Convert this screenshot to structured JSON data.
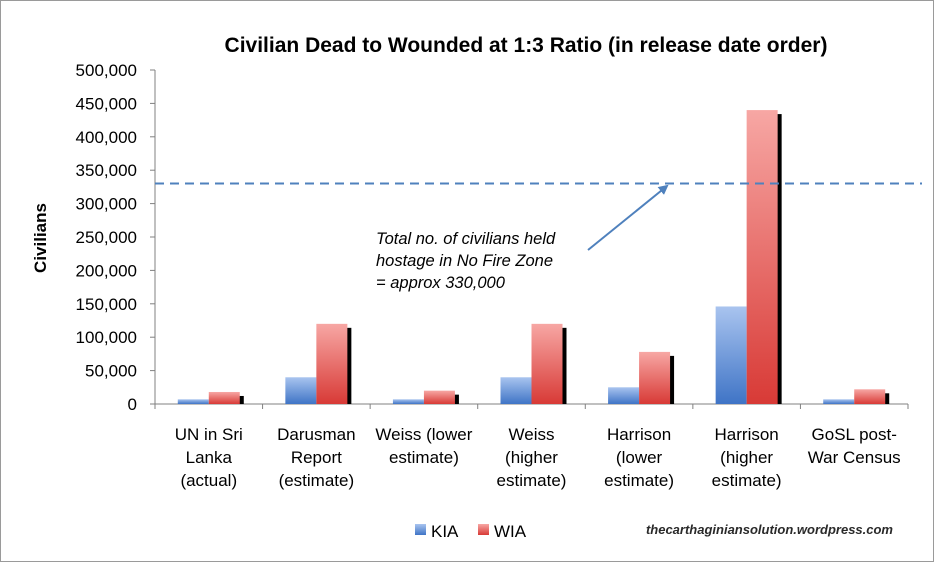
{
  "chart_data": {
    "type": "bar",
    "title": "Civilian Dead to Wounded at 1:3 Ratio (in release date order)",
    "ylabel": "Civilians",
    "xlabel": "",
    "ylim": [
      0,
      500000
    ],
    "yticks": [
      "0",
      "50,000",
      "100,000",
      "150,000",
      "200,000",
      "250,000",
      "300,000",
      "350,000",
      "400,000",
      "450,000",
      "500,000"
    ],
    "categories": [
      [
        "UN in Sri",
        "Lanka",
        "(actual)"
      ],
      [
        "Darusman",
        "Report",
        "(estimate)"
      ],
      [
        "Weiss (lower",
        "estimate)"
      ],
      [
        "Weiss",
        "(higher",
        "estimate)"
      ],
      [
        "Harrison",
        "(lower",
        "estimate)"
      ],
      [
        "Harrison",
        "(higher",
        "estimate)"
      ],
      [
        "GoSL post-",
        "War Census"
      ]
    ],
    "series": [
      {
        "name": "KIA",
        "color": "#4f81bd",
        "values": [
          7000,
          40000,
          7000,
          40000,
          25000,
          146000,
          7000
        ]
      },
      {
        "name": "WIA",
        "color": "#e34a45",
        "values": [
          18000,
          120000,
          20000,
          120000,
          78000,
          440000,
          22000
        ]
      }
    ],
    "reference_line": {
      "value": 330000,
      "style": "dashed",
      "color": "#4f81bd",
      "annotation": [
        "Total no. of civilians held",
        "hostage in No Fire Zone",
        "= approx 330,000"
      ]
    },
    "legend_position": "bottom",
    "grid": false
  },
  "credit": "thecarthaginiansolution.wordpress.com"
}
